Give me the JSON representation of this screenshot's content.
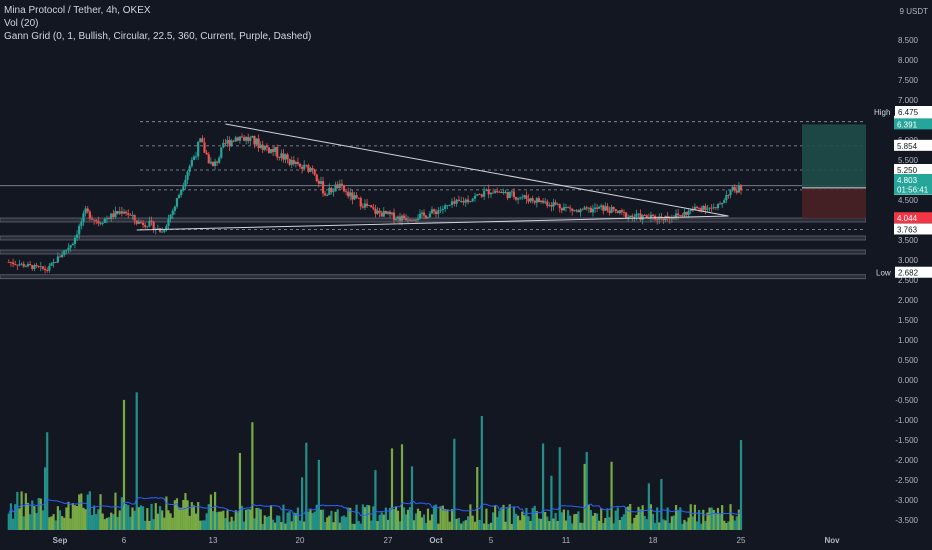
{
  "legend": {
    "symbol_line": "Mina Protocol / Tether, 4h, OKEX",
    "volume_line": "Vol (20)",
    "gann_line": "Gann Grid (0, 1, Bullish, Circular, 22.5, 360, Current, Purple, Dashed)"
  },
  "colors": {
    "background": "#131722",
    "up": "#26a69a",
    "down": "#ef5350",
    "grid_text": "#b2b5be",
    "price_label": "#26a69a",
    "stop_label": "#f23645",
    "volume_up": "#8bc34a",
    "volume_down": "#26a69a",
    "volume_ma": "#2962ff",
    "target_zone": "#1e4d48",
    "stop_zone": "#4a2025"
  },
  "chart_data": {
    "type": "candlestick",
    "title": "Mina Protocol / Tether, 4h, OKEX",
    "currency_label": "USDT",
    "y_top_label": "9 USDT",
    "y_ticks": [
      "9.000",
      "8.500",
      "8.000",
      "7.500",
      "7.000",
      "6.500",
      "6.000",
      "5.500",
      "5.000",
      "4.500",
      "4.000",
      "3.500",
      "3.000",
      "2.500",
      "2.000",
      "1.500",
      "1.000",
      "0.500",
      "0.000",
      "-0.500",
      "-1.000",
      "-1.500",
      "-2.000",
      "-2.500",
      "-3.000",
      "-3.500"
    ],
    "ylim": [
      -3.75,
      9.25
    ],
    "x_ticks": [
      "Sep",
      "6",
      "13",
      "20",
      "27",
      "Oct",
      "5",
      "11",
      "18",
      "25",
      "Nov"
    ],
    "x_tick_dates": [
      "2021-09-01",
      "2021-09-06",
      "2021-09-13",
      "2021-09-20",
      "2021-09-27",
      "2021-10-01",
      "2021-10-05",
      "2021-10-11",
      "2021-10-18",
      "2021-10-25",
      "2021-11-01"
    ],
    "price_path": [
      [
        "2021-08-28",
        2.95
      ],
      [
        "2021-08-31",
        2.75
      ],
      [
        "2021-09-02",
        3.45
      ],
      [
        "2021-09-03",
        4.2
      ],
      [
        "2021-09-04",
        3.95
      ],
      [
        "2021-09-06",
        4.25
      ],
      [
        "2021-09-07",
        3.95
      ],
      [
        "2021-09-08",
        3.9
      ],
      [
        "2021-09-09",
        3.7
      ],
      [
        "2021-09-10",
        4.35
      ],
      [
        "2021-09-11",
        5.25
      ],
      [
        "2021-09-12",
        5.95
      ],
      [
        "2021-09-13",
        5.3
      ],
      [
        "2021-09-14",
        5.9
      ],
      [
        "2021-09-15",
        6.1
      ],
      [
        "2021-09-16",
        6.0
      ],
      [
        "2021-09-18",
        5.7
      ],
      [
        "2021-09-20",
        5.3
      ],
      [
        "2021-09-21",
        5.3
      ],
      [
        "2021-09-22",
        4.65
      ],
      [
        "2021-09-23",
        4.85
      ],
      [
        "2021-09-24",
        4.6
      ],
      [
        "2021-09-26",
        4.2
      ],
      [
        "2021-09-28",
        4.05
      ],
      [
        "2021-09-30",
        4.1
      ],
      [
        "2021-10-02",
        4.35
      ],
      [
        "2021-10-04",
        4.6
      ],
      [
        "2021-10-05",
        4.75
      ],
      [
        "2021-10-07",
        4.6
      ],
      [
        "2021-10-10",
        4.4
      ],
      [
        "2021-10-12",
        4.2
      ],
      [
        "2021-10-14",
        4.3
      ],
      [
        "2021-10-16",
        4.1
      ],
      [
        "2021-10-18",
        4.05
      ],
      [
        "2021-10-20",
        4.1
      ],
      [
        "2021-10-22",
        4.35
      ],
      [
        "2021-10-23",
        4.25
      ],
      [
        "2021-10-24",
        4.7
      ],
      [
        "2021-10-25",
        4.8
      ]
    ],
    "volume_bars": 230,
    "horizontal_levels": [
      6.458,
      5.854,
      5.25,
      4.753,
      3.763
    ],
    "level_labels": [
      "6.458",
      "5.854",
      "5.250",
      "4.753",
      "3.763"
    ],
    "support_bands": [
      4.0,
      3.55,
      3.2,
      2.58
    ],
    "current_price": "4.803",
    "countdown": "01:56:41",
    "stop_price": "4.044",
    "target_price": "6.391",
    "high_label": "High",
    "high_value": "6.475",
    "low_label": "Low",
    "low_value": "2.682",
    "trendlines": [
      {
        "from": [
          "2021-09-14",
          6.4
        ],
        "to": [
          "2021-10-24",
          4.1
        ]
      },
      {
        "from": [
          "2021-09-07",
          3.75
        ],
        "to": [
          "2021-10-24",
          4.1
        ]
      }
    ],
    "position": {
      "entry": 4.803,
      "target": 6.391,
      "stop": 4.044,
      "from": "2021-10-30",
      "to": "2021-11-01"
    }
  }
}
